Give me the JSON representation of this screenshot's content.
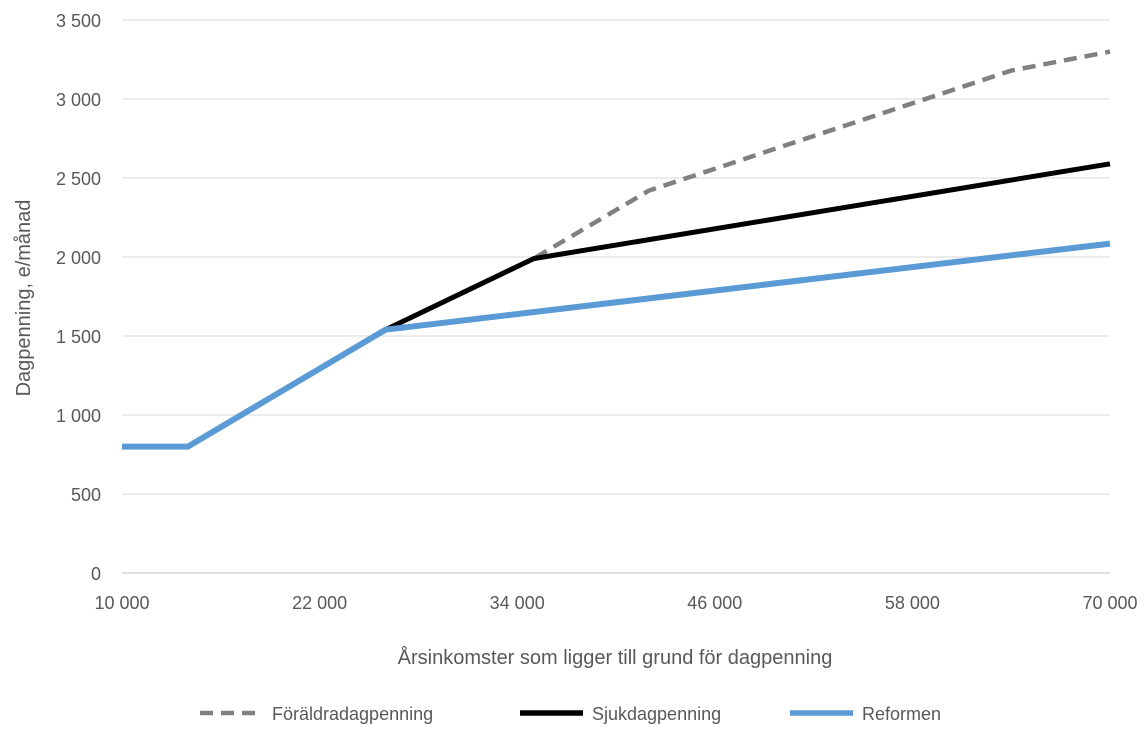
{
  "chart_data": {
    "type": "line",
    "title": "",
    "xlabel": "Årsinkomster som ligger till grund för dagpenning",
    "ylabel": "Dagpenning, e/månad",
    "xlim": [
      10000,
      70000
    ],
    "ylim": [
      0,
      3500
    ],
    "x_ticks": [
      {
        "value": 10000,
        "label": "10 000"
      },
      {
        "value": 22000,
        "label": "22 000"
      },
      {
        "value": 34000,
        "label": "34 000"
      },
      {
        "value": 46000,
        "label": "46 000"
      },
      {
        "value": 58000,
        "label": "58 000"
      },
      {
        "value": 70000,
        "label": "70 000"
      }
    ],
    "y_ticks": [
      {
        "value": 0,
        "label": "0"
      },
      {
        "value": 500,
        "label": "500"
      },
      {
        "value": 1000,
        "label": "1 000"
      },
      {
        "value": 1500,
        "label": "1 500"
      },
      {
        "value": 2000,
        "label": "2 000"
      },
      {
        "value": 2500,
        "label": "2 500"
      },
      {
        "value": 3000,
        "label": "3 000"
      },
      {
        "value": 3500,
        "label": "3 500"
      }
    ],
    "grid": "horizontal",
    "legend_position": "bottom",
    "series": [
      {
        "name": "Föräldradagpenning",
        "color": "#808080",
        "style": "dashed",
        "points": [
          [
            10000,
            800
          ],
          [
            14000,
            800
          ],
          [
            26000,
            1540
          ],
          [
            35000,
            1990
          ],
          [
            42000,
            2420
          ],
          [
            64000,
            3180
          ],
          [
            70000,
            3300
          ]
        ]
      },
      {
        "name": "Sjukdagpenning",
        "color": "#000000",
        "style": "solid",
        "points": [
          [
            10000,
            800
          ],
          [
            14000,
            800
          ],
          [
            26000,
            1540
          ],
          [
            35000,
            1990
          ],
          [
            70000,
            2590
          ]
        ]
      },
      {
        "name": "Reformen",
        "color": "#5B9BD5",
        "style": "solid",
        "points": [
          [
            10000,
            800
          ],
          [
            14000,
            800
          ],
          [
            26000,
            1540
          ],
          [
            70000,
            2085
          ]
        ]
      }
    ]
  }
}
